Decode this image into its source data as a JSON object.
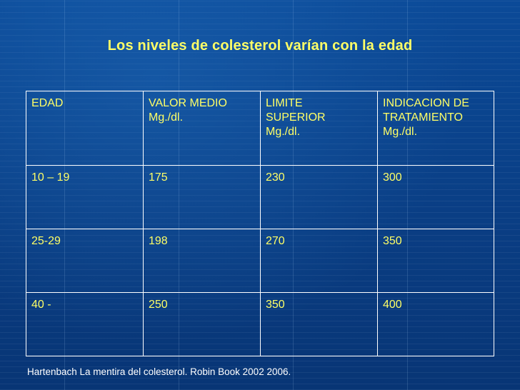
{
  "slide": {
    "title": "Los niveles de colesterol varían con la edad",
    "source": "Hartenbach La mentira del colesterol. Robin Book 2002 2006."
  },
  "table": {
    "header": [
      {
        "lines": [
          "EDAD"
        ]
      },
      {
        "lines": [
          "VALOR MEDIO",
          "Mg./dl."
        ]
      },
      {
        "lines": [
          "LIMITE",
          "SUPERIOR",
          "Mg./dl."
        ]
      },
      {
        "lines": [
          "INDICACION DE",
          "TRATAMIENTO",
          "Mg./dl."
        ]
      }
    ],
    "rows": [
      [
        "10 – 19",
        "175",
        "230",
        "300"
      ],
      [
        "25-29",
        "198",
        "270",
        "350"
      ],
      [
        "40 -",
        "250",
        "350",
        "400"
      ]
    ]
  },
  "colors": {
    "background": "#0a3f86",
    "text": "#ffff66",
    "border": "#ffffff"
  }
}
